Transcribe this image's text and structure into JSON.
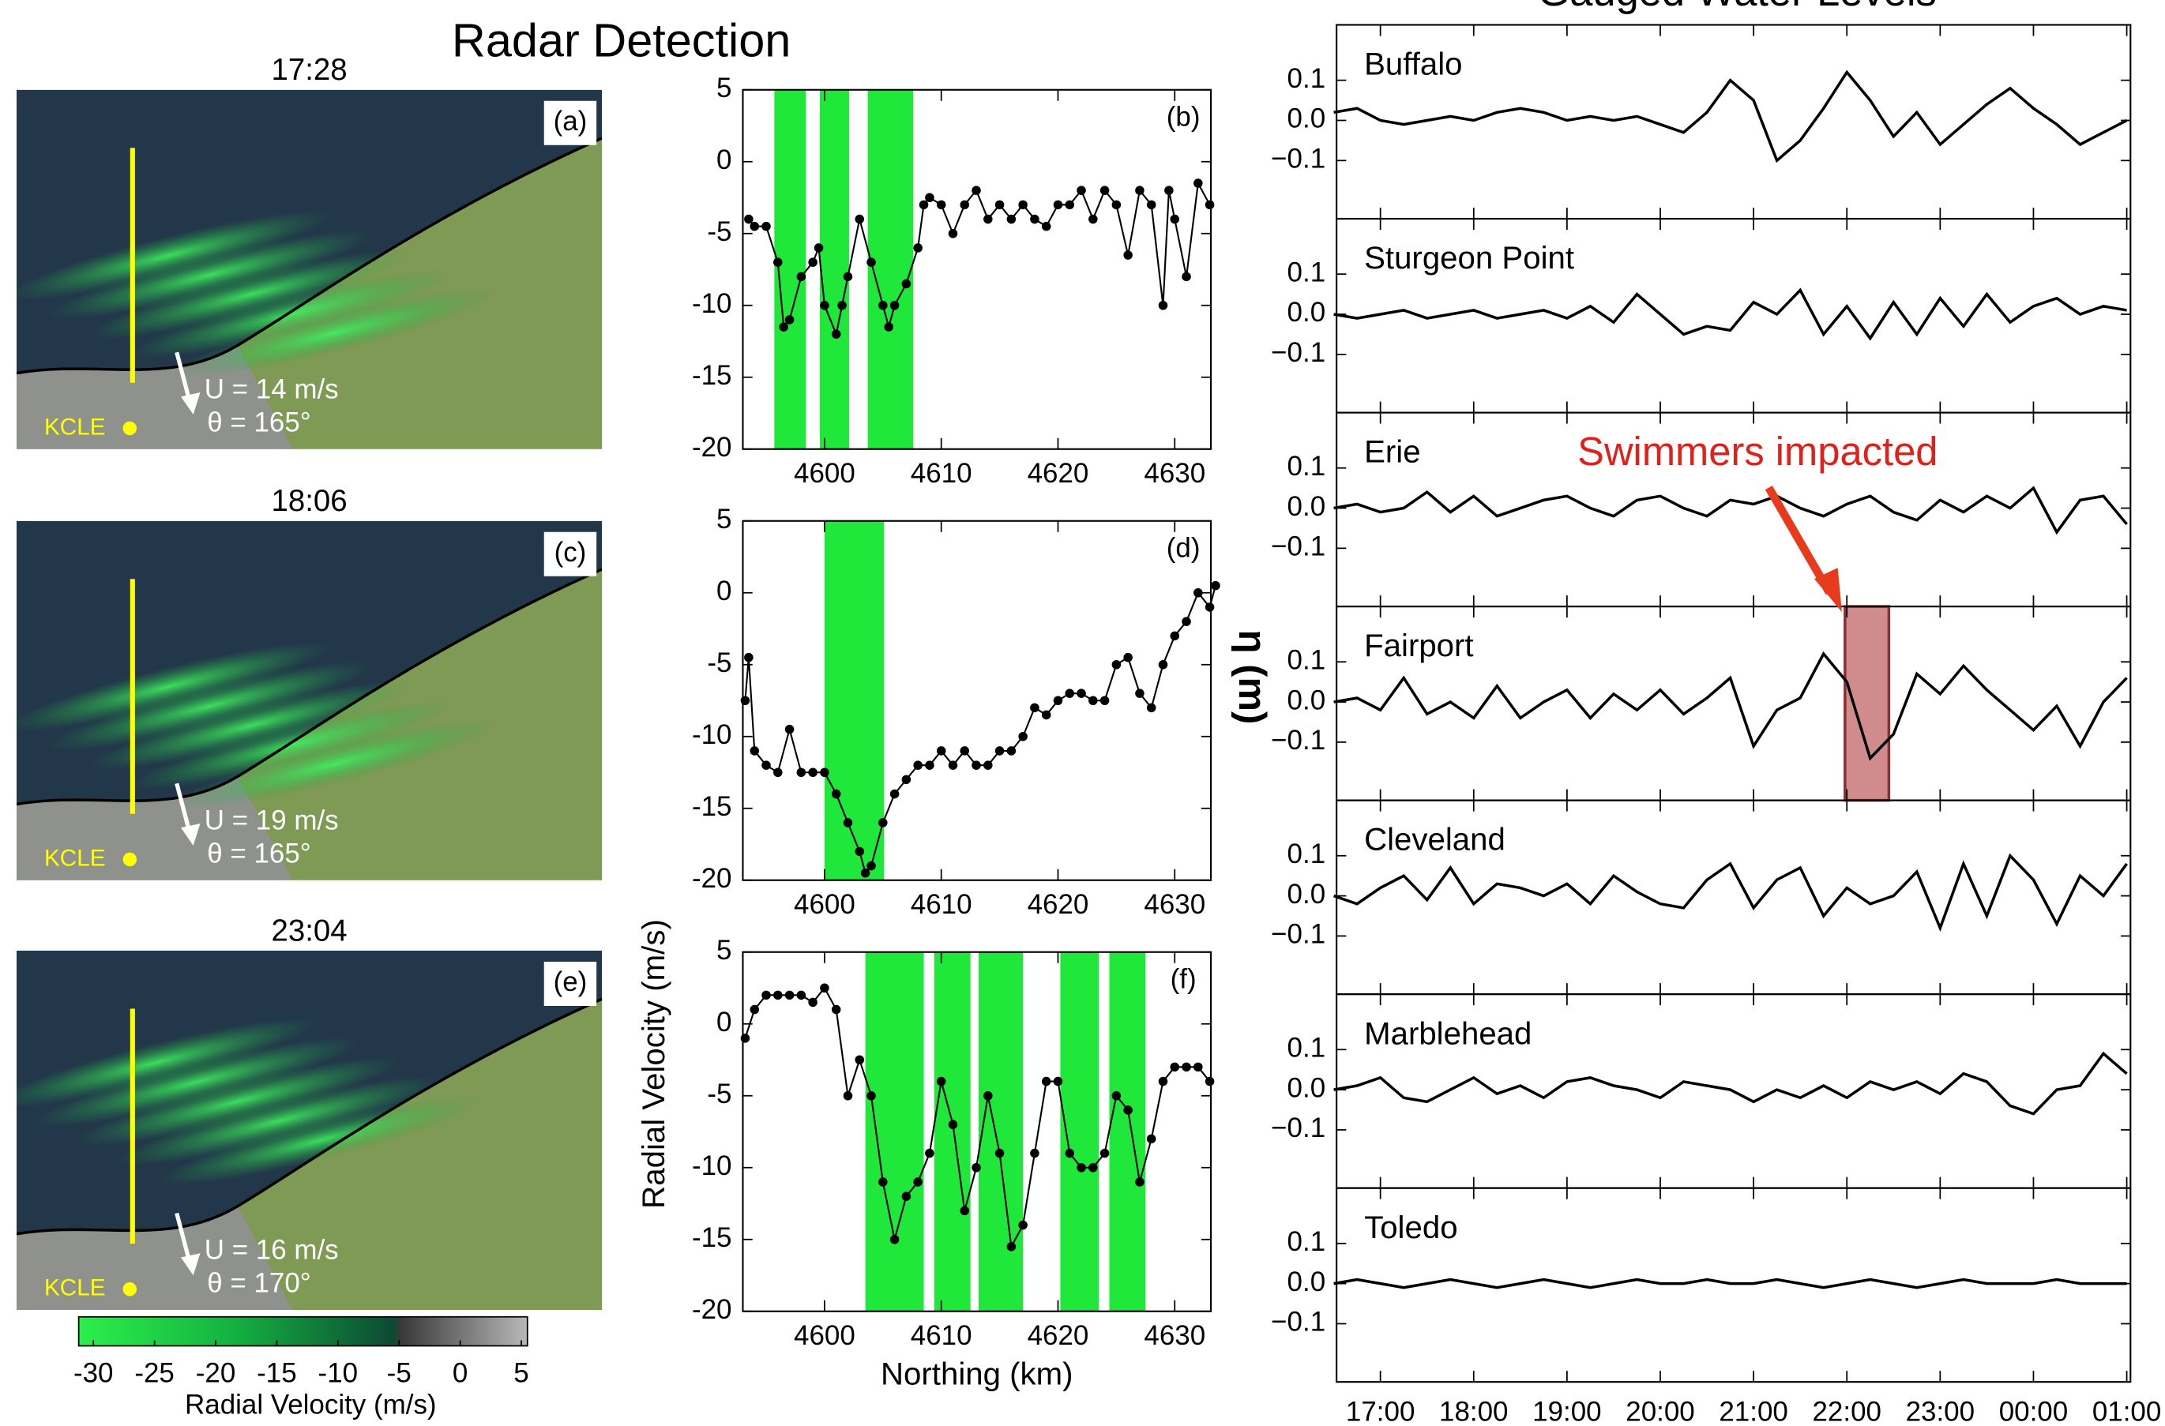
{
  "title": "Radar Detection",
  "water_title": "Gauged Water Levels",
  "water_ylabel": "η (m)",
  "radar_panels": [
    {
      "time": "17:28",
      "label": "(a)",
      "speed": "U = 14 m/s",
      "direction": "θ = 165°",
      "station": "KCLE"
    },
    {
      "time": "18:06",
      "label": "(c)",
      "speed": "U = 19 m/s",
      "direction": "θ = 165°",
      "station": "KCLE"
    },
    {
      "time": "23:04",
      "label": "(e)",
      "speed": "U = 16 m/s",
      "direction": "θ = 170°",
      "station": "KCLE"
    }
  ],
  "chart_data": [
    {
      "type": "colorbar",
      "xlabel": "Radial Velocity (m/s)",
      "xlim": [
        -31.2,
        5.5
      ],
      "xticks": [
        -30,
        -25,
        -20,
        -15,
        -10,
        -5,
        0,
        5
      ]
    },
    {
      "type": "line",
      "panel_label": "(b)",
      "color": "#000000",
      "band_color": "#1fe83a",
      "markers": true,
      "x": [
        4593.5,
        4594,
        4595,
        4596,
        4596.5,
        4597,
        4598,
        4599,
        4599.5,
        4600,
        4601,
        4601.5,
        4602,
        4603,
        4604,
        4605,
        4605.5,
        4606,
        4607,
        4608,
        4608.5,
        4609,
        4610,
        4611,
        4612,
        4613,
        4614,
        4615,
        4616,
        4617,
        4618,
        4619,
        4620,
        4621,
        4622,
        4623,
        4624,
        4625,
        4626,
        4627,
        4628,
        4629,
        4629.5,
        4630,
        4631,
        4632,
        4633
      ],
      "values": [
        -4,
        -4.5,
        -4.5,
        -7,
        -11.5,
        -11,
        -8,
        -7,
        -6,
        -10,
        -12,
        -10,
        -8,
        -4,
        -7,
        -10,
        -11.5,
        -10,
        -8.5,
        -6,
        -3,
        -2.5,
        -3,
        -5,
        -3,
        -2,
        -4,
        -3,
        -4,
        -3,
        -4,
        -4.5,
        -3,
        -3,
        -2,
        -4,
        -2,
        -3,
        -6.5,
        -2,
        -3,
        -10,
        -2,
        -4,
        -8,
        -1.5,
        -3
      ],
      "bands": [
        [
          4595.7,
          4598.4
        ],
        [
          4599.6,
          4602.1
        ],
        [
          4603.7,
          4607.6
        ]
      ],
      "xlim": [
        4593,
        4633.1
      ],
      "ylim": [
        -20,
        5
      ],
      "xticks": [
        4600,
        4610,
        4620,
        4630
      ],
      "yticks": [
        5,
        0,
        -5,
        -10,
        -15,
        -20
      ]
    },
    {
      "type": "line",
      "panel_label": "(d)",
      "ylabel": "Radial Velocity (m/s)",
      "color": "#000000",
      "band_color": "#1fe83a",
      "markers": true,
      "x": [
        4593.2,
        4593.5,
        4594,
        4595,
        4596,
        4597,
        4598,
        4599,
        4600,
        4601,
        4602,
        4603,
        4603.5,
        4604,
        4605,
        4606,
        4607,
        4608,
        4609,
        4610,
        4611,
        4612,
        4613,
        4614,
        4615,
        4616,
        4617,
        4618,
        4619,
        4620,
        4621,
        4622,
        4623,
        4624,
        4625,
        4626,
        4627,
        4628,
        4629,
        4630,
        4631,
        4632,
        4633,
        4633.5
      ],
      "values": [
        -7.5,
        -4.5,
        -11,
        -12,
        -12.5,
        -9.5,
        -12.5,
        -12.5,
        -12.5,
        -14,
        -16,
        -18,
        -19.5,
        -19,
        -16,
        -14,
        -13,
        -12,
        -12,
        -11,
        -12,
        -11,
        -12,
        -12,
        -11,
        -11,
        -10,
        -8,
        -8.5,
        -7.5,
        -7,
        -7,
        -7.5,
        -7.5,
        -5,
        -4.5,
        -7,
        -8,
        -5,
        -3,
        -2,
        0,
        -1,
        0.5
      ],
      "bands": [
        [
          4600,
          4605.1
        ]
      ],
      "xlim": [
        4593,
        4633.1
      ],
      "ylim": [
        -20,
        5
      ],
      "xticks": [
        4600,
        4610,
        4620,
        4630
      ],
      "yticks": [
        5,
        0,
        -5,
        -10,
        -15,
        -20
      ]
    },
    {
      "type": "line",
      "panel_label": "(f)",
      "xlabel": "Northing (km)",
      "color": "#000000",
      "band_color": "#1fe83a",
      "markers": true,
      "x": [
        4593.2,
        4594,
        4595,
        4596,
        4597,
        4598,
        4599,
        4600,
        4601,
        4602,
        4603,
        4604,
        4605,
        4606,
        4607,
        4608,
        4609,
        4610,
        4611,
        4612,
        4613,
        4614,
        4615,
        4616,
        4617,
        4618,
        4619,
        4620,
        4621,
        4622,
        4623,
        4624,
        4625,
        4626,
        4627,
        4628,
        4629,
        4630,
        4631,
        4632,
        4633
      ],
      "values": [
        -1,
        1,
        2,
        2,
        2,
        2,
        1.5,
        2.5,
        1,
        -5,
        -2.5,
        -5,
        -11,
        -15,
        -12,
        -11,
        -9,
        -4,
        -7,
        -13,
        -10,
        -5,
        -9,
        -15.5,
        -14,
        -9,
        -4,
        -4,
        -9,
        -10,
        -10,
        -9,
        -5,
        -6,
        -11,
        -8,
        -4,
        -3,
        -3,
        -3,
        -4
      ],
      "bands": [
        [
          4603.5,
          4608.5
        ],
        [
          4609.4,
          4612.5
        ],
        [
          4613.2,
          4617
        ],
        [
          4620.2,
          4623.5
        ],
        [
          4624.4,
          4627.5
        ]
      ],
      "xlim": [
        4593,
        4633.1
      ],
      "ylim": [
        -20,
        5
      ],
      "xticks": [
        4600,
        4610,
        4620,
        4630
      ],
      "yticks": [
        5,
        0,
        -5,
        -10,
        -15,
        -20
      ]
    },
    {
      "type": "line",
      "station": "Buffalo",
      "color": "#000000",
      "x": [
        16.5,
        16.75,
        17,
        17.25,
        17.5,
        17.75,
        18,
        18.25,
        18.5,
        18.75,
        19,
        19.25,
        19.5,
        19.75,
        20,
        20.25,
        20.5,
        20.75,
        21,
        21.25,
        21.5,
        21.75,
        22,
        22.25,
        22.5,
        22.75,
        23,
        23.25,
        23.5,
        23.75,
        24,
        24.25,
        24.5,
        24.75,
        25
      ],
      "values": [
        0.02,
        0.03,
        0.0,
        -0.01,
        0.0,
        0.01,
        0.0,
        0.02,
        0.03,
        0.02,
        0.0,
        0.01,
        0.0,
        0.01,
        -0.01,
        -0.03,
        0.02,
        0.1,
        0.05,
        -0.1,
        -0.05,
        0.03,
        0.12,
        0.05,
        -0.04,
        0.02,
        -0.06,
        -0.01,
        0.04,
        0.08,
        0.03,
        -0.01,
        -0.06,
        -0.03,
        0.0
      ],
      "xlim": [
        16.53,
        25.04
      ],
      "ylim": [
        -0.245,
        0.238
      ],
      "yticks": [
        0.1,
        {
          "value": 0,
          "label": "0.0"
        },
        {
          "value": -0.1,
          "label": "−0.1"
        }
      ]
    },
    {
      "type": "line",
      "station": "Sturgeon Point",
      "color": "#000000",
      "x": [
        16.5,
        16.75,
        17,
        17.25,
        17.5,
        17.75,
        18,
        18.25,
        18.5,
        18.75,
        19,
        19.25,
        19.5,
        19.75,
        20,
        20.25,
        20.5,
        20.75,
        21,
        21.25,
        21.5,
        21.75,
        22,
        22.25,
        22.5,
        22.75,
        23,
        23.25,
        23.5,
        23.75,
        24,
        24.25,
        24.5,
        24.75,
        25
      ],
      "values": [
        0.0,
        -0.01,
        0.0,
        0.01,
        -0.01,
        0.0,
        0.01,
        -0.01,
        0.0,
        0.01,
        -0.01,
        0.02,
        -0.02,
        0.05,
        0.0,
        -0.05,
        -0.03,
        -0.04,
        0.03,
        0.0,
        0.06,
        -0.05,
        0.02,
        -0.06,
        0.03,
        -0.05,
        0.04,
        -0.03,
        0.05,
        -0.02,
        0.02,
        0.04,
        0.0,
        0.02,
        0.01
      ],
      "xlim": [
        16.53,
        25.04
      ],
      "ylim": [
        -0.245,
        0.238
      ],
      "yticks": [
        0.1,
        {
          "value": 0,
          "label": "0.0"
        },
        {
          "value": -0.1,
          "label": "−0.1"
        }
      ]
    },
    {
      "type": "line",
      "station": "Erie",
      "color": "#000000",
      "x": [
        16.5,
        16.75,
        17,
        17.25,
        17.5,
        17.75,
        18,
        18.25,
        18.5,
        18.75,
        19,
        19.25,
        19.5,
        19.75,
        20,
        20.25,
        20.5,
        20.75,
        21,
        21.25,
        21.5,
        21.75,
        22,
        22.25,
        22.5,
        22.75,
        23,
        23.25,
        23.5,
        23.75,
        24,
        24.25,
        24.5,
        24.75,
        25
      ],
      "values": [
        0.0,
        0.01,
        -0.01,
        0.0,
        0.04,
        -0.01,
        0.03,
        -0.02,
        0.0,
        0.02,
        0.03,
        0.0,
        -0.02,
        0.02,
        0.03,
        0.0,
        -0.02,
        0.02,
        0.01,
        0.03,
        0.0,
        -0.02,
        0.01,
        0.03,
        -0.01,
        -0.03,
        0.02,
        -0.01,
        0.03,
        0.0,
        0.05,
        -0.06,
        0.02,
        0.03,
        -0.04
      ],
      "xlim": [
        16.53,
        25.04
      ],
      "ylim": [
        -0.245,
        0.238
      ],
      "yticks": [
        0.1,
        {
          "value": 0,
          "label": "0.0"
        },
        {
          "value": -0.1,
          "label": "−0.1"
        }
      ]
    },
    {
      "type": "line",
      "station": "Fairport",
      "color": "#000000",
      "highlight": [
        21.98,
        22.45
      ],
      "highlight_color": "#d08c8c",
      "annotation": "Swimmers impacted",
      "x": [
        16.5,
        16.75,
        17,
        17.25,
        17.5,
        17.75,
        18,
        18.25,
        18.5,
        18.75,
        19,
        19.25,
        19.5,
        19.75,
        20,
        20.25,
        20.5,
        20.75,
        21,
        21.25,
        21.5,
        21.75,
        22,
        22.25,
        22.5,
        22.75,
        23,
        23.25,
        23.5,
        23.75,
        24,
        24.25,
        24.5,
        24.75,
        25
      ],
      "values": [
        0.0,
        0.01,
        -0.02,
        0.06,
        -0.03,
        0.0,
        -0.04,
        0.04,
        -0.04,
        0.0,
        0.03,
        -0.04,
        0.02,
        -0.02,
        0.03,
        -0.03,
        0.01,
        0.06,
        -0.11,
        -0.02,
        0.01,
        0.12,
        0.05,
        -0.14,
        -0.08,
        0.07,
        0.02,
        0.09,
        0.03,
        -0.02,
        -0.07,
        -0.01,
        -0.11,
        0.0,
        0.06
      ],
      "xlim": [
        16.53,
        25.04
      ],
      "ylim": [
        -0.245,
        0.238
      ],
      "yticks": [
        0.1,
        {
          "value": 0,
          "label": "0.0"
        },
        {
          "value": -0.1,
          "label": "−0.1"
        }
      ]
    },
    {
      "type": "line",
      "station": "Cleveland",
      "color": "#000000",
      "x": [
        16.5,
        16.75,
        17,
        17.25,
        17.5,
        17.75,
        18,
        18.25,
        18.5,
        18.75,
        19,
        19.25,
        19.5,
        19.75,
        20,
        20.25,
        20.5,
        20.75,
        21,
        21.25,
        21.5,
        21.75,
        22,
        22.25,
        22.5,
        22.75,
        23,
        23.25,
        23.5,
        23.75,
        24,
        24.25,
        24.5,
        24.75,
        25
      ],
      "values": [
        0.0,
        -0.02,
        0.02,
        0.05,
        -0.01,
        0.07,
        -0.02,
        0.03,
        0.02,
        0.0,
        0.03,
        -0.02,
        0.05,
        0.01,
        -0.02,
        -0.03,
        0.04,
        0.08,
        -0.03,
        0.04,
        0.07,
        -0.05,
        0.02,
        -0.02,
        0.0,
        0.06,
        -0.08,
        0.08,
        -0.05,
        0.1,
        0.04,
        -0.07,
        0.05,
        0.0,
        0.08
      ],
      "xlim": [
        16.53,
        25.04
      ],
      "ylim": [
        -0.245,
        0.238
      ],
      "yticks": [
        0.1,
        {
          "value": 0,
          "label": "0.0"
        },
        {
          "value": -0.1,
          "label": "−0.1"
        }
      ]
    },
    {
      "type": "line",
      "station": "Marblehead",
      "color": "#000000",
      "x": [
        16.5,
        16.75,
        17,
        17.25,
        17.5,
        17.75,
        18,
        18.25,
        18.5,
        18.75,
        19,
        19.25,
        19.5,
        19.75,
        20,
        20.25,
        20.5,
        20.75,
        21,
        21.25,
        21.5,
        21.75,
        22,
        22.25,
        22.5,
        22.75,
        23,
        23.25,
        23.5,
        23.75,
        24,
        24.25,
        24.5,
        24.75,
        25
      ],
      "values": [
        0.0,
        0.01,
        0.03,
        -0.02,
        -0.03,
        0.0,
        0.03,
        -0.01,
        0.01,
        -0.02,
        0.02,
        0.03,
        0.01,
        0.0,
        -0.02,
        0.02,
        0.01,
        0.0,
        -0.03,
        0.0,
        -0.02,
        0.01,
        -0.02,
        0.02,
        0.0,
        0.02,
        -0.01,
        0.04,
        0.02,
        -0.04,
        -0.06,
        0.0,
        0.01,
        0.09,
        0.04
      ],
      "xlim": [
        16.53,
        25.04
      ],
      "ylim": [
        -0.245,
        0.238
      ],
      "yticks": [
        0.1,
        {
          "value": 0,
          "label": "0.0"
        },
        {
          "value": -0.1,
          "label": "−0.1"
        }
      ]
    },
    {
      "type": "line",
      "station": "Toledo",
      "color": "#000000",
      "x": [
        16.5,
        16.75,
        17,
        17.25,
        17.5,
        17.75,
        18,
        18.25,
        18.5,
        18.75,
        19,
        19.25,
        19.5,
        19.75,
        20,
        20.25,
        20.5,
        20.75,
        21,
        21.25,
        21.5,
        21.75,
        22,
        22.25,
        22.5,
        22.75,
        23,
        23.25,
        23.5,
        23.75,
        24,
        24.25,
        24.5,
        24.75,
        25
      ],
      "values": [
        0.0,
        0.01,
        0.0,
        -0.01,
        0.0,
        0.01,
        0.0,
        -0.01,
        0.0,
        0.01,
        0.0,
        -0.01,
        0.0,
        0.01,
        0.0,
        0.0,
        0.01,
        0.0,
        0.0,
        0.01,
        0.0,
        -0.01,
        0.0,
        0.01,
        0.0,
        -0.01,
        0.0,
        0.01,
        0.0,
        0.0,
        0.0,
        0.01,
        0.0,
        0.0,
        0.0
      ],
      "xlim": [
        16.53,
        25.04
      ],
      "ylim": [
        -0.245,
        0.238
      ],
      "yticks": [
        0.1,
        {
          "value": 0,
          "label": "0.0"
        },
        {
          "value": -0.1,
          "label": "−0.1"
        }
      ],
      "xticks": [
        {
          "value": 17,
          "label": "17:00"
        },
        {
          "value": 18,
          "label": "18:00"
        },
        {
          "value": 19,
          "label": "19:00"
        },
        {
          "value": 20,
          "label": "20:00"
        },
        {
          "value": 21,
          "label": "21:00"
        },
        {
          "value": 22,
          "label": "22:00"
        },
        {
          "value": 23,
          "label": "23:00"
        },
        {
          "value": 24,
          "label": "00:00"
        },
        {
          "value": 25,
          "label": "01:00"
        }
      ]
    }
  ]
}
